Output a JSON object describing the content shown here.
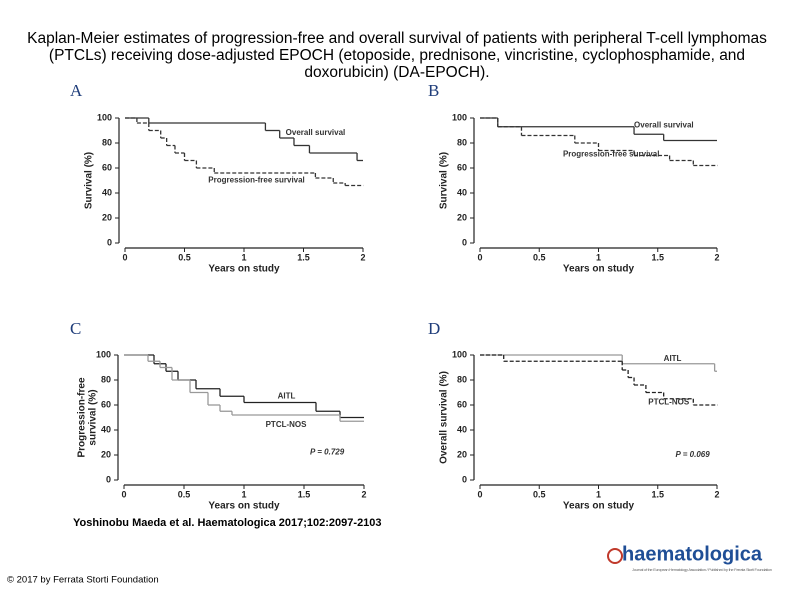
{
  "title": "Kaplan-Meier estimates of progression-free and overall survival of patients with peripheral T-cell lymphomas (PTCLs) receiving dose-adjusted EPOCH (etoposide, prednisone, vincristine, cyclophosphamide, and doxorubicin) (DA-EPOCH).",
  "citation": "Yoshinobu Maeda et al. Haematologica 2017;102:2097-2103",
  "copyright": "© 2017 by Ferrata Storti Foundation",
  "logo": {
    "name": "haematologica",
    "tagline": "Journal of the European Hematology Association / Published by the Ferrata Storti Foundation"
  },
  "chart_data": [
    {
      "type": "line",
      "step": true,
      "panel": "A",
      "ylabel": [
        "Survival (%)"
      ],
      "xlabel": "Years on study",
      "xlim": [
        0,
        2
      ],
      "xticks": [
        0,
        0.5,
        1,
        1.5,
        2
      ],
      "ylim": [
        0,
        100
      ],
      "yticks": [
        0,
        20,
        40,
        60,
        80,
        100
      ],
      "series": [
        {
          "name": "Overall survival",
          "color": "#333333",
          "line_style": "solid",
          "x": [
            0,
            0.2,
            1.18,
            1.3,
            1.42,
            1.55,
            1.95,
            2
          ],
          "values": [
            100,
            96,
            90,
            84,
            78,
            72,
            66,
            66
          ]
        },
        {
          "name": "Progression-free survival",
          "color": "#333333",
          "line_style": "dashed",
          "x": [
            0,
            0.1,
            0.2,
            0.3,
            0.35,
            0.42,
            0.5,
            0.6,
            0.75,
            1.6,
            1.75,
            1.85,
            2
          ],
          "values": [
            100,
            96,
            90,
            84,
            78,
            72,
            66,
            60,
            56,
            52,
            48,
            46,
            46
          ]
        }
      ]
    },
    {
      "type": "line",
      "step": true,
      "panel": "B",
      "ylabel": [
        "Survival (%)"
      ],
      "xlabel": "Years on study",
      "xlim": [
        0,
        2
      ],
      "xticks": [
        0,
        0.5,
        1,
        1.5,
        2
      ],
      "ylim": [
        0,
        100
      ],
      "yticks": [
        0,
        20,
        40,
        60,
        80,
        100
      ],
      "series": [
        {
          "name": "Overall survival",
          "color": "#333333",
          "line_style": "solid",
          "x": [
            0,
            0.15,
            1.3,
            1.55,
            2
          ],
          "values": [
            100,
            93,
            87,
            82,
            82
          ]
        },
        {
          "name": "Progression-free survival",
          "color": "#333333",
          "line_style": "dashed",
          "x": [
            0,
            0.15,
            0.35,
            0.8,
            1.0,
            1.3,
            1.6,
            1.8,
            2
          ],
          "values": [
            100,
            93,
            86,
            80,
            74,
            70,
            66,
            62,
            62
          ]
        }
      ]
    },
    {
      "type": "line",
      "step": true,
      "panel": "C",
      "ylabel": [
        "Progression-free",
        "survival (%)"
      ],
      "xlabel": "Years on study",
      "xlim": [
        0,
        2
      ],
      "xticks": [
        0,
        0.5,
        1,
        1.5,
        2
      ],
      "ylim": [
        0,
        100
      ],
      "yticks": [
        0,
        20,
        40,
        60,
        80,
        100
      ],
      "annotation": "P = 0.729",
      "series": [
        {
          "name": "AITL",
          "color": "#222222",
          "line_style": "solid",
          "x": [
            0,
            0.25,
            0.35,
            0.45,
            0.6,
            0.8,
            1.0,
            1.6,
            1.8,
            2
          ],
          "values": [
            100,
            93,
            87,
            80,
            73,
            67,
            62,
            55,
            50,
            50
          ]
        },
        {
          "name": "PTCL-NOS",
          "color": "#999999",
          "line_style": "solid",
          "x": [
            0,
            0.2,
            0.3,
            0.4,
            0.55,
            0.7,
            0.8,
            0.9,
            1.8,
            2
          ],
          "values": [
            100,
            95,
            90,
            80,
            70,
            60,
            55,
            52,
            47,
            47
          ]
        }
      ]
    },
    {
      "type": "line",
      "step": true,
      "panel": "D",
      "ylabel": [
        "Overall survival (%)"
      ],
      "xlabel": "Years on study",
      "xlim": [
        0,
        2
      ],
      "xticks": [
        0,
        0.5,
        1,
        1.5,
        2
      ],
      "ylim": [
        0,
        100
      ],
      "yticks": [
        0,
        20,
        40,
        60,
        80,
        100
      ],
      "annotation": "P = 0.069",
      "series": [
        {
          "name": "AITL",
          "color": "#999999",
          "line_style": "solid",
          "x": [
            0,
            1.2,
            1.98
          ],
          "values": [
            100,
            93,
            87
          ]
        },
        {
          "name": "PTCL-NOS",
          "color": "#222222",
          "line_style": "dashed",
          "x": [
            0,
            0.2,
            1.2,
            1.25,
            1.3,
            1.4,
            1.55,
            1.8,
            2
          ],
          "values": [
            100,
            95,
            88,
            82,
            76,
            70,
            65,
            60,
            60
          ]
        }
      ]
    }
  ]
}
